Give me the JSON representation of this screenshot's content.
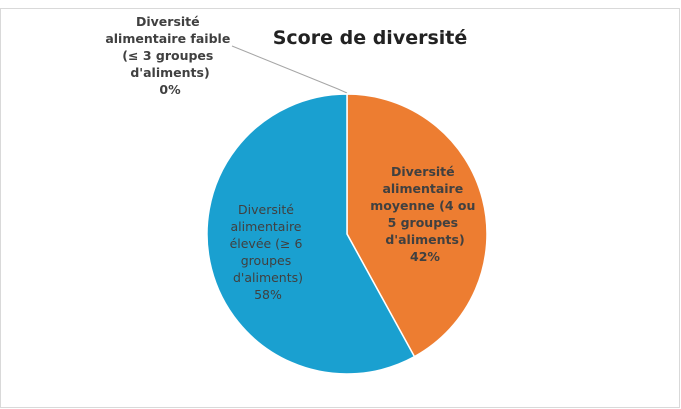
{
  "chart_data": {
    "type": "pie",
    "title": "Score de diversité",
    "categories": [
      "Diversité alimentaire faible (≤ 3 groupes d'aliments)",
      "Diversité alimentaire moyenne (4 ou 5 groupes d'aliments)",
      "Diversité alimentaire élevée (≥ 6 groupes d'aliments)"
    ],
    "values": [
      0,
      42,
      58
    ],
    "value_labels": [
      "0%",
      "42%",
      "58%"
    ],
    "colors": [
      "#a5a5a5",
      "#ed7d31",
      "#1aa0d0"
    ]
  }
}
